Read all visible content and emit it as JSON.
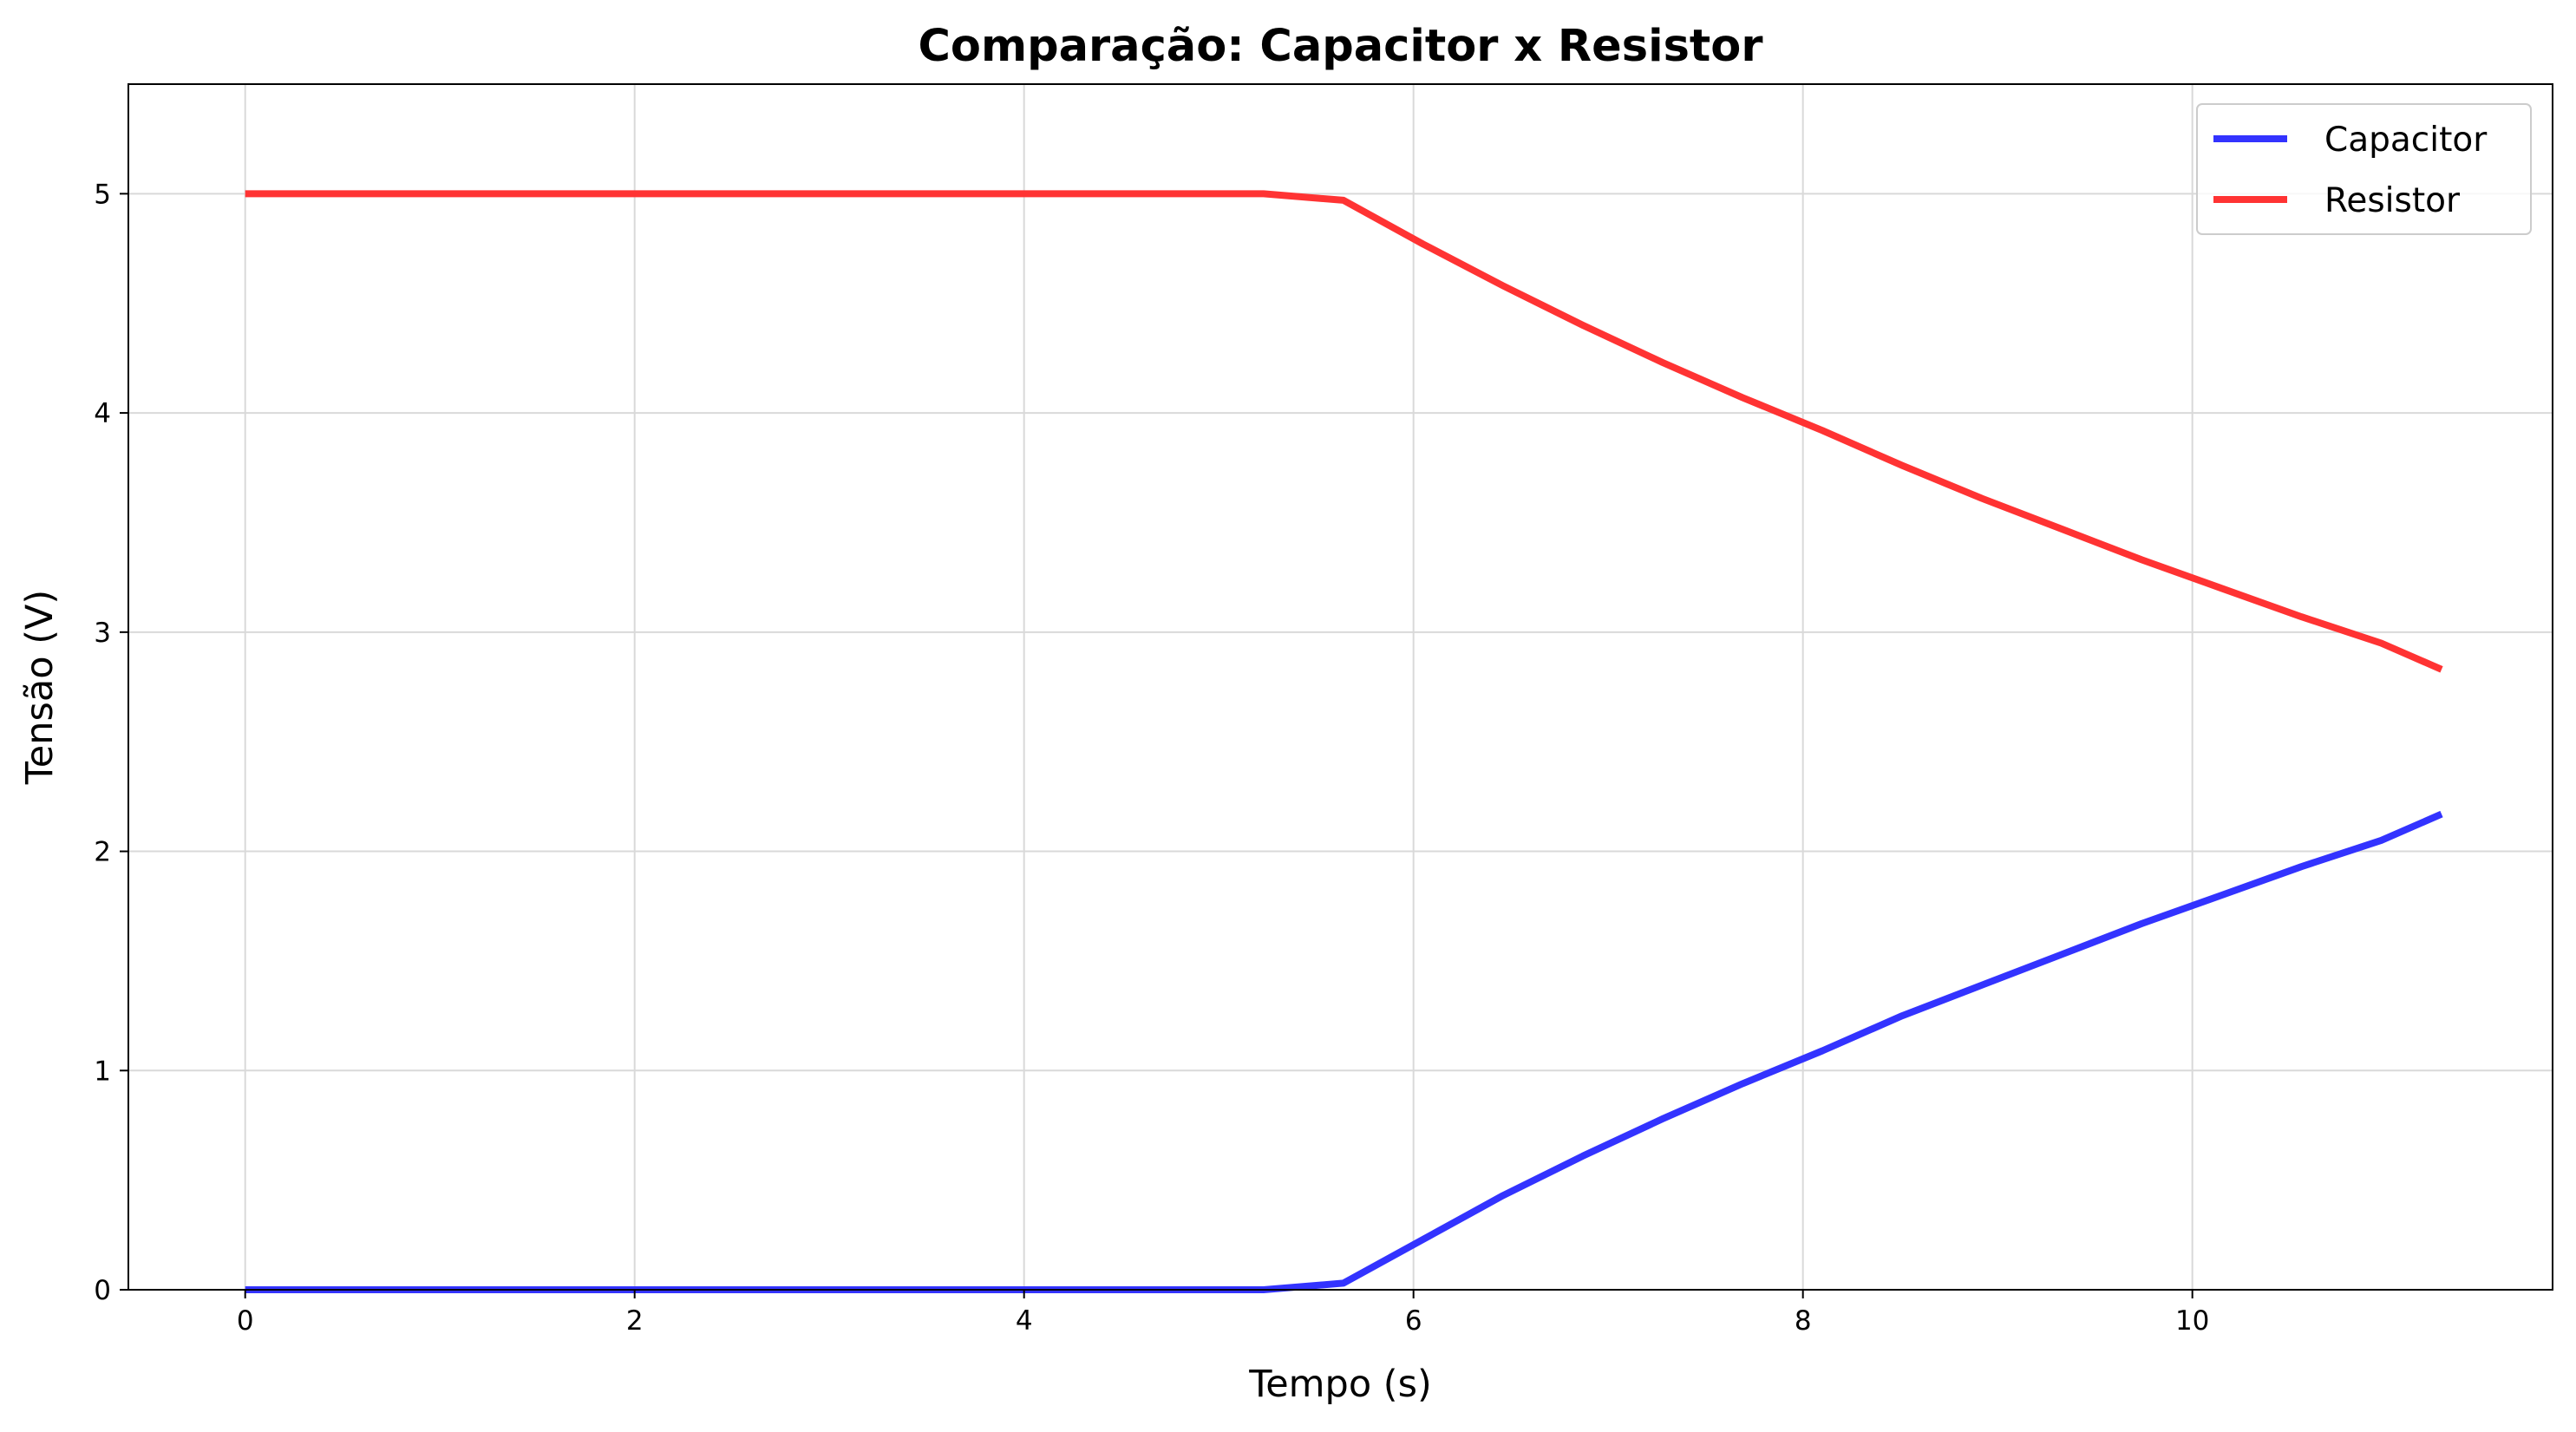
{
  "chart_data": {
    "type": "line",
    "title": "Comparação: Capacitor x Resistor",
    "xlabel": "Tempo (s)",
    "ylabel": "Tensão (V)",
    "xlim": [
      -0.6,
      11.85
    ],
    "ylim": [
      0,
      5.5
    ],
    "xticks": [
      0,
      2,
      4,
      6,
      8,
      10
    ],
    "yticks": [
      0,
      1,
      2,
      3,
      4,
      5
    ],
    "grid": true,
    "legend_position": "top-right",
    "x": [
      0,
      0.41,
      0.82,
      1.23,
      1.64,
      2.05,
      2.46,
      2.87,
      3.28,
      3.69,
      4.1,
      4.51,
      4.92,
      5.23,
      5.64,
      6.05,
      6.46,
      6.87,
      7.28,
      7.69,
      8.1,
      8.51,
      8.92,
      9.33,
      9.74,
      10.15,
      10.56,
      10.97,
      11.28
    ],
    "series": [
      {
        "name": "Capacitor",
        "color": "#3333ff",
        "values": [
          0,
          0,
          0,
          0,
          0,
          0,
          0,
          0,
          0,
          0,
          0,
          0,
          0,
          0,
          0.03,
          0.23,
          0.43,
          0.61,
          0.78,
          0.94,
          1.09,
          1.25,
          1.39,
          1.53,
          1.67,
          1.8,
          1.93,
          2.05,
          2.17
        ]
      },
      {
        "name": "Resistor",
        "color": "#ff3333",
        "values": [
          5,
          5,
          5,
          5,
          5,
          5,
          5,
          5,
          5,
          5,
          5,
          5,
          5,
          5,
          4.97,
          4.77,
          4.58,
          4.4,
          4.23,
          4.07,
          3.92,
          3.76,
          3.61,
          3.47,
          3.33,
          3.2,
          3.07,
          2.95,
          2.83
        ]
      }
    ]
  }
}
